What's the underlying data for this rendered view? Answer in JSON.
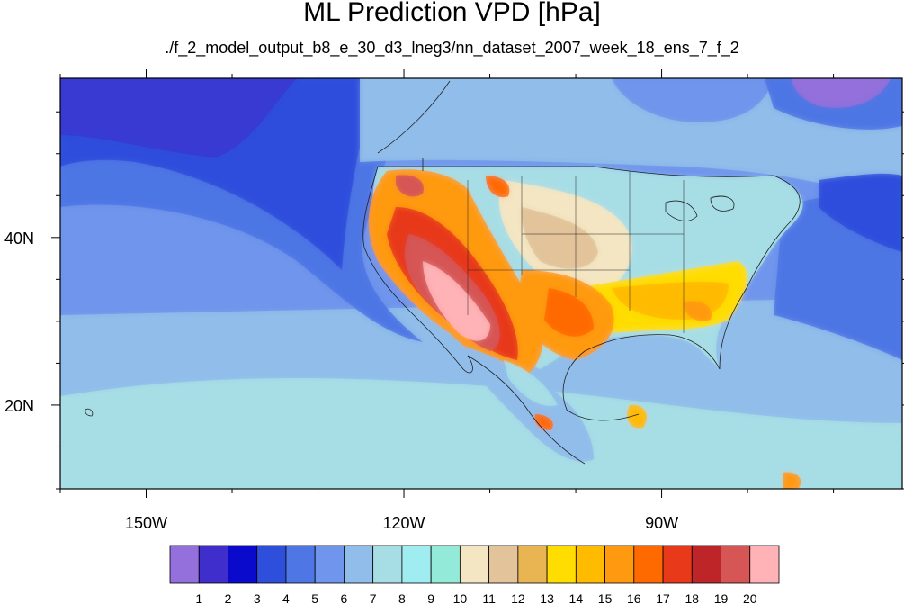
{
  "title": "ML Prediction VPD [hPa]",
  "subtitle": "./f_2_model_output_b8_e_30_d3_lneg3/nn_dataset_2007_week_18_ens_7_f_2",
  "axes": {
    "x_ticks": [
      {
        "label": "150W",
        "lon": -150
      },
      {
        "label": "120W",
        "lon": -120
      },
      {
        "label": "90W",
        "lon": -90
      }
    ],
    "y_ticks": [
      {
        "label": "40N",
        "lat": 40
      },
      {
        "label": "20N",
        "lat": 20
      }
    ]
  },
  "colorbar": {
    "labels": [
      "1",
      "2",
      "3",
      "4",
      "5",
      "6",
      "7",
      "8",
      "9",
      "10",
      "11",
      "12",
      "13",
      "14",
      "15",
      "16",
      "17",
      "18",
      "19",
      "20"
    ],
    "colors": [
      "#9370DB",
      "#3F2DCC",
      "#0A0ACC",
      "#2E4EDC",
      "#4E76E5",
      "#6F95EC",
      "#90BDEA",
      "#A7DEE6",
      "#9FEDF0",
      "#94EAD8",
      "#F4E6C2",
      "#E2C39A",
      "#E9B553",
      "#FFDD00",
      "#FFBB00",
      "#FF9A10",
      "#FF6A00",
      "#E8391A",
      "#BE2529",
      "#D65555",
      "#FFB3B6"
    ]
  },
  "chart_data": {
    "type": "heatmap",
    "title": "ML Prediction VPD [hPa]",
    "subtitle": "./f_2_model_output_b8_e_30_d3_lneg3/nn_dataset_2007_week_18_ens_7_f_2",
    "projection": "cylindrical-equidistant",
    "lon_range": [
      -160,
      -62
    ],
    "lat_range": [
      10,
      59
    ],
    "x_tick_labels": [
      "150W",
      "120W",
      "90W"
    ],
    "y_tick_labels": [
      "40N",
      "20N"
    ],
    "colorbar_levels": [
      1,
      2,
      3,
      4,
      5,
      6,
      7,
      8,
      9,
      10,
      11,
      12,
      13,
      14,
      15,
      16,
      17,
      18,
      19,
      20
    ],
    "regions": [
      {
        "area": "northeast Pacific (off Pacific Northwest coast)",
        "vpd_level": 2
      },
      {
        "area": "open Pacific",
        "vpd_level": 5
      },
      {
        "area": "Pacific Northwest interior",
        "vpd_level": 16
      },
      {
        "area": "California Central Valley & Great Basin",
        "vpd_level": 19
      },
      {
        "area": "Desert Southwest & northwest Mexico",
        "vpd_level": 20
      },
      {
        "area": "Texas",
        "vpd_level": 17
      },
      {
        "area": "Southeast US",
        "vpd_level": 15
      },
      {
        "area": "Great Plains",
        "vpd_level": 12
      },
      {
        "area": "Upper Midwest & Great Lakes",
        "vpd_level": 8
      },
      {
        "area": "Northeast US",
        "vpd_level": 6
      },
      {
        "area": "Canada",
        "vpd_level": 7
      },
      {
        "area": "Gulf of Mexico & Caribbean",
        "vpd_level": 7
      }
    ]
  }
}
